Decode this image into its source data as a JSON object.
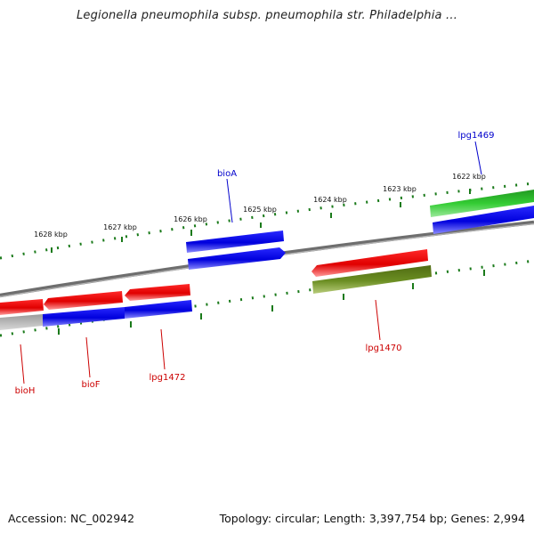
{
  "title": "Legionella pneumophila subsp. pneumophila str. Philadelphia ...",
  "footer": {
    "accession": "Accession: NC_002942",
    "topology": "Topology: circular; Length: 3,397,754 bp; Genes: 2,994"
  },
  "colors": {
    "forward_gene": "#0000e0",
    "reverse_gene": "#ee0000",
    "rna_gene": "#33cc33",
    "other_gene": "#6b8e23",
    "backbone": "#808080",
    "ticks": "#1a7a1a",
    "forward_label": "#0000cc",
    "reverse_label": "#cc0000"
  },
  "scale_labels": [
    "1628 kbp",
    "1627 kbp",
    "1626 kbp",
    "1625 kbp",
    "1624 kbp",
    "1623 kbp",
    "1622 kbp"
  ],
  "gene_labels": [
    {
      "text": "lpg1469",
      "strand": "forward"
    },
    {
      "text": "bioA",
      "strand": "forward"
    },
    {
      "text": "lpg1470",
      "strand": "reverse"
    },
    {
      "text": "lpg1472",
      "strand": "reverse"
    },
    {
      "text": "bioF",
      "strand": "reverse"
    },
    {
      "text": "bioH",
      "strand": "reverse"
    }
  ]
}
